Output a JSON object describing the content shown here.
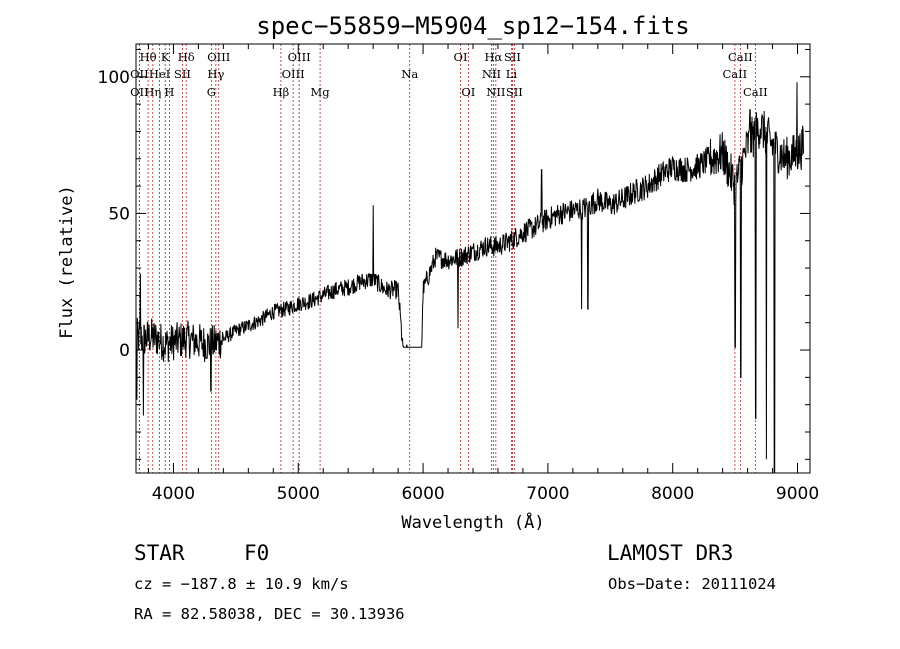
{
  "chart_data": {
    "type": "line",
    "title": "spec−55859−M5904_sp12−154.fits",
    "xlabel": "Wavelength (Å)",
    "ylabel": "Flux (relative)",
    "xlim": [
      3700,
      9100
    ],
    "ylim": [
      -45,
      112
    ],
    "x_ticks": [
      4000,
      5000,
      6000,
      7000,
      8000,
      9000
    ],
    "y_ticks": [
      0,
      50,
      100
    ],
    "grid": false,
    "line_color": "#000000",
    "marker_color": "#b22222",
    "series": [
      {
        "name": "flux",
        "x": [
          3700,
          3760,
          3820,
          3880,
          3940,
          4000,
          4100,
          4200,
          4300,
          4400,
          4500,
          4600,
          4700,
          4800,
          4900,
          5000,
          5100,
          5200,
          5300,
          5400,
          5500,
          5600,
          5700,
          5800,
          5830,
          5840,
          5990,
          6000,
          6100,
          6200,
          6300,
          6400,
          6500,
          6600,
          6700,
          6800,
          6900,
          7000,
          7100,
          7200,
          7300,
          7400,
          7500,
          7600,
          7700,
          7800,
          7900,
          8000,
          8100,
          8200,
          8300,
          8400,
          8500,
          8600,
          8700,
          8800,
          8900,
          9000,
          9050
        ],
        "y": [
          5,
          4,
          5,
          4,
          2,
          3,
          4,
          3,
          2,
          4,
          7,
          9,
          11,
          14,
          15,
          17,
          18,
          20,
          22,
          23,
          25,
          26,
          22,
          22,
          5,
          1,
          1,
          22,
          34,
          33,
          34,
          36,
          38,
          38,
          40,
          43,
          45,
          48,
          50,
          51,
          52,
          55,
          53,
          55,
          58,
          60,
          64,
          67,
          66,
          67,
          70,
          72,
          60,
          75,
          82,
          75,
          70,
          72,
          75
        ]
      }
    ],
    "dips": [
      {
        "x": 3705,
        "y": -18
      },
      {
        "x": 3760,
        "y": -24
      },
      {
        "x": 4300,
        "y": -15
      },
      {
        "x": 5870,
        "y": 2
      },
      {
        "x": 6280,
        "y": 8
      },
      {
        "x": 7270,
        "y": 15
      },
      {
        "x": 7320,
        "y": 15
      },
      {
        "x": 8500,
        "y": 1
      },
      {
        "x": 8545,
        "y": -10
      },
      {
        "x": 8665,
        "y": -25
      },
      {
        "x": 8750,
        "y": -40
      },
      {
        "x": 8815,
        "y": -45
      }
    ],
    "spikes": [
      {
        "x": 3735,
        "y": 28
      },
      {
        "x": 5600,
        "y": 53
      },
      {
        "x": 6950,
        "y": 66
      },
      {
        "x": 8620,
        "y": 88
      },
      {
        "x": 8995,
        "y": 98
      }
    ],
    "lines": [
      {
        "name": "Hθ",
        "x": 3797,
        "row": 0
      },
      {
        "name": "OII",
        "x": 3727,
        "row": 1
      },
      {
        "name": "OII",
        "x": 3727,
        "row": 2
      },
      {
        "name": "K",
        "x": 3934,
        "row": 0
      },
      {
        "name": "HeI",
        "x": 3889,
        "row": 1
      },
      {
        "name": "Hη",
        "x": 3835,
        "row": 2
      },
      {
        "name": "SII",
        "x": 4072,
        "row": 1
      },
      {
        "name": "H",
        "x": 3968,
        "row": 2
      },
      {
        "name": "Hδ",
        "x": 4102,
        "row": 0
      },
      {
        "name": "OIII",
        "x": 4363,
        "row": 0
      },
      {
        "name": "Hγ",
        "x": 4340,
        "row": 1
      },
      {
        "name": "G",
        "x": 4304,
        "row": 2
      },
      {
        "name": "Hβ",
        "x": 4861,
        "row": 2
      },
      {
        "name": "OIII",
        "x": 5007,
        "row": 0
      },
      {
        "name": "OIII",
        "x": 4959,
        "row": 1
      },
      {
        "name": "Mg",
        "x": 5175,
        "row": 2
      },
      {
        "name": "Na",
        "x": 5893,
        "row": 1
      },
      {
        "name": "OI",
        "x": 6300,
        "row": 0
      },
      {
        "name": "OI",
        "x": 6363,
        "row": 2
      },
      {
        "name": "Hα",
        "x": 6563,
        "row": 0
      },
      {
        "name": "NII",
        "x": 6548,
        "row": 1
      },
      {
        "name": "NII",
        "x": 6583,
        "row": 2
      },
      {
        "name": "SII",
        "x": 6716,
        "row": 0
      },
      {
        "name": "Li",
        "x": 6708,
        "row": 1
      },
      {
        "name": "SII",
        "x": 6731,
        "row": 2
      },
      {
        "name": "CaII",
        "x": 8542,
        "row": 0
      },
      {
        "name": "CaII",
        "x": 8498,
        "row": 1
      },
      {
        "name": "CaII",
        "x": 8662,
        "row": 2
      }
    ]
  },
  "info": {
    "object_type": "STAR",
    "subclass": "F0",
    "survey": "LAMOST DR3",
    "cz": "cz = −187.8 ± 10.9 km/s",
    "obs_date": "Obs−Date: 20111024",
    "coords": "RA =  82.58038, DEC =  30.13936"
  }
}
